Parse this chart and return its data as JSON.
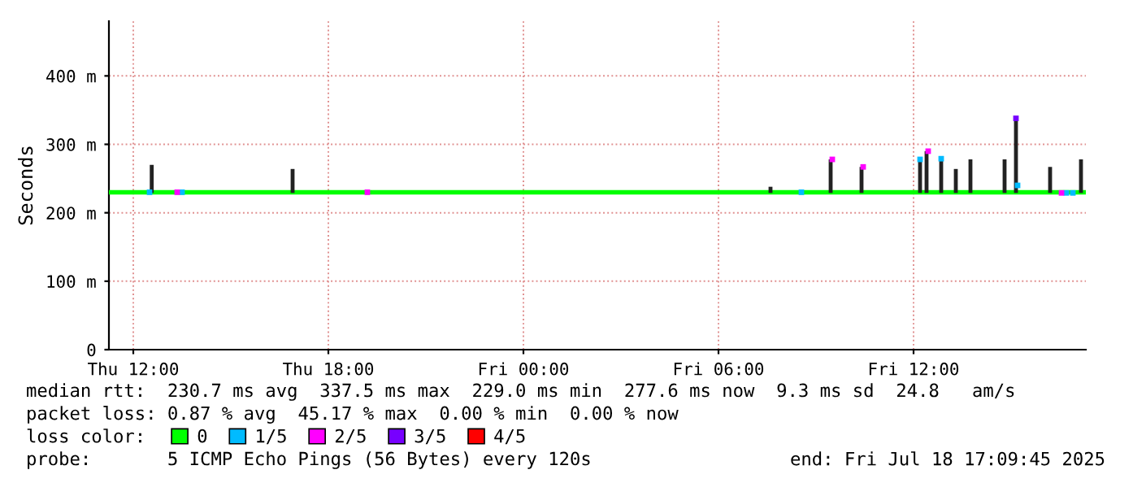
{
  "chart_data": {
    "type": "line",
    "ylabel": "Seconds",
    "xlim": [
      "2025-07-17T11:15",
      "2025-07-18T17:18"
    ],
    "ylim": [
      0,
      480
    ],
    "xticks": [
      {
        "value": "2025-07-17T12:00",
        "label": "Thu 12:00"
      },
      {
        "value": "2025-07-17T18:00",
        "label": "Thu 18:00"
      },
      {
        "value": "2025-07-18T00:00",
        "label": "Fri 00:00"
      },
      {
        "value": "2025-07-18T06:00",
        "label": "Fri 06:00"
      },
      {
        "value": "2025-07-18T12:00",
        "label": "Fri 12:00"
      }
    ],
    "yticks": [
      0,
      {
        "value": 100,
        "label": "100 m"
      },
      {
        "value": 200,
        "label": "200 m"
      },
      {
        "value": 300,
        "label": "300 m"
      },
      {
        "value": 400,
        "label": "400 m"
      }
    ],
    "grid": true,
    "legend": "bottom",
    "legend_title": "loss color:",
    "series": [
      {
        "type": "bar",
        "color": "#222222",
        "x": [
          "2025-07-17T12:34",
          "2025-07-17T16:54",
          "2025-07-18T07:36",
          "2025-07-18T09:27",
          "2025-07-18T10:24",
          "2025-07-18T12:12",
          "2025-07-18T12:24",
          "2025-07-18T12:51",
          "2025-07-18T13:18",
          "2025-07-18T13:45",
          "2025-07-18T14:48",
          "2025-07-18T15:09",
          "2025-07-18T16:12",
          "2025-07-18T17:09"
        ],
        "base": [
          229,
          229,
          229,
          229,
          229,
          229,
          229,
          229,
          229,
          229,
          229,
          229,
          229,
          229
        ],
        "values": [
          41,
          35,
          9,
          49,
          38,
          49,
          61,
          51,
          35,
          49,
          49,
          109,
          38,
          49
        ]
      },
      {
        "name": "0",
        "color": "#00ff00",
        "x": [
          "2025-07-17T11:15",
          "2025-07-18T17:18"
        ],
        "values": [
          230,
          230
        ]
      },
      {
        "type": "scatter",
        "marker": "square",
        "name": "1/5",
        "color": "#00bbff",
        "x": [
          "2025-07-17T12:30",
          "2025-07-17T13:30",
          "2025-07-18T08:33",
          "2025-07-18T12:12",
          "2025-07-18T12:51",
          "2025-07-18T15:12",
          "2025-07-18T16:42",
          "2025-07-18T16:54"
        ],
        "values": [
          230,
          230,
          230,
          278,
          279,
          240,
          229,
          229
        ]
      },
      {
        "type": "scatter",
        "marker": "square",
        "name": "2/5",
        "color": "#ff00ff",
        "x": [
          "2025-07-17T13:21",
          "2025-07-17T19:12",
          "2025-07-18T09:30",
          "2025-07-18T10:27",
          "2025-07-18T12:27",
          "2025-07-18T16:33"
        ],
        "values": [
          230,
          230,
          278,
          267,
          290,
          229
        ]
      },
      {
        "type": "scatter",
        "marker": "square",
        "name": "3/5",
        "color": "#7700ff",
        "x": [
          "2025-07-18T15:09"
        ],
        "values": [
          338
        ]
      },
      {
        "type": "scatter",
        "name": "4/5",
        "color": "#ff0000"
      }
    ],
    "annotations": [
      "median rtt:  230.7 ms avg  337.5 ms max  229.0 ms min  277.6 ms now  9.3 ms sd  24.8   am/s",
      "packet loss: 0.87 % avg  45.17 % max  0.00 % min  0.00 % now",
      "probe:       5 ICMP Echo Pings (56 Bytes) every 120s",
      "end: Fri Jul 18 17:09:45 2025"
    ]
  }
}
